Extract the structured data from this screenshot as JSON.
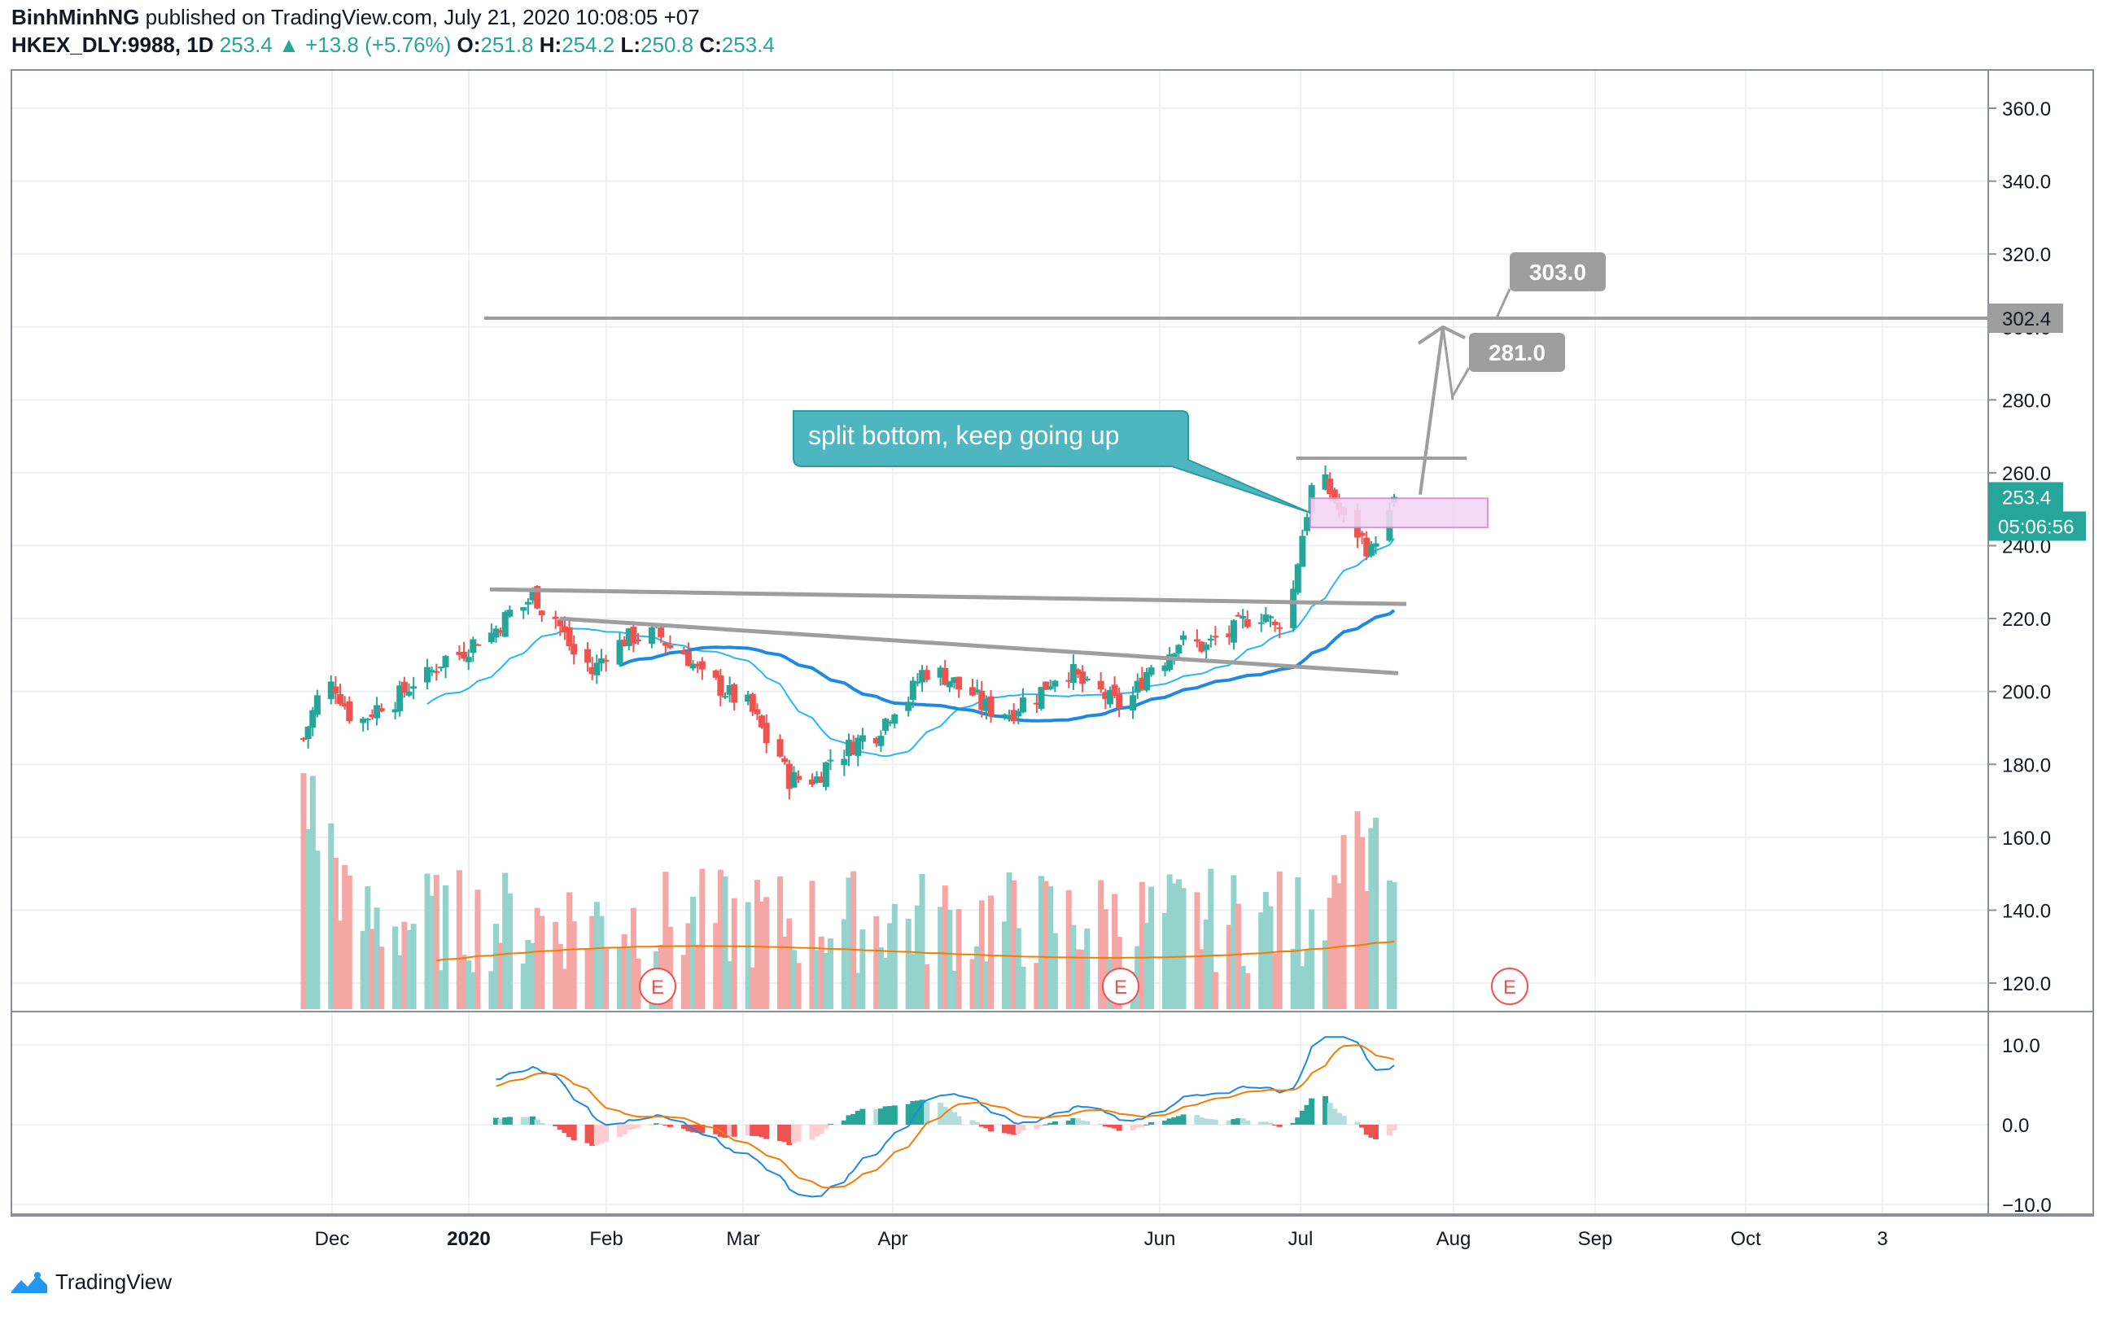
{
  "header": {
    "author": "BinhMinhNG",
    "published_text": "published on TradingView.com, July 21, 2020 10:08:05 +07",
    "symbol": "HKEX_DLY:9988, 1D",
    "last": "253.4",
    "change": "+13.8 (+5.76%)",
    "open_label": "O:",
    "open": "251.8",
    "high_label": "H:",
    "high": "254.2",
    "low_label": "L:",
    "low": "250.8",
    "close_label": "C:",
    "close": "253.4"
  },
  "brand": {
    "name": "TradingView",
    "icon": "tradingview-logo-icon"
  },
  "colors": {
    "up": "#26a69a",
    "down": "#ef5350",
    "grid": "#eef0f3",
    "ma_fast": "#29b6f6",
    "ma_slow": "#1e88e5",
    "trendline": "#9e9e9e",
    "volume_ma": "#f57c00",
    "macd": "#1e88e5",
    "signal": "#f57c00"
  },
  "chart_data": {
    "type": "candlestick",
    "price_axis": {
      "ticks": [
        "360.0",
        "340.0",
        "320.0",
        "300.0",
        "280.0",
        "260.0",
        "240.0",
        "220.0",
        "200.0",
        "180.0",
        "160.0",
        "140.0",
        "120.0"
      ],
      "ylim": [
        115,
        365
      ]
    },
    "macd_axis": {
      "ticks": [
        "10.0",
        "0.0",
        "−10.0"
      ],
      "ylim": [
        -12,
        13
      ]
    },
    "time_axis": {
      "labels": [
        "Dec",
        "2020",
        "Feb",
        "Mar",
        "Apr",
        "Jun",
        "Jul",
        "Aug",
        "Sep",
        "Oct",
        "3"
      ],
      "bold": [
        "2020"
      ]
    },
    "price_labels": {
      "level": "302.4",
      "last": "253.4",
      "countdown": "05:06:56"
    },
    "callouts": [
      {
        "text": "split bottom, keep going up"
      },
      {
        "text": "303.0",
        "value": 303.0
      },
      {
        "text": "281.0",
        "value": 281.0
      }
    ],
    "earnings_markers": [
      "E",
      "E",
      "E"
    ],
    "resistance_level": 302.4,
    "first_day": "2019-11-26",
    "last_day": "2020-07-21",
    "series": [
      {
        "name": "candles",
        "start": 186,
        "end": 253.4
      },
      {
        "name": "volume"
      },
      {
        "name": "macd"
      }
    ]
  }
}
